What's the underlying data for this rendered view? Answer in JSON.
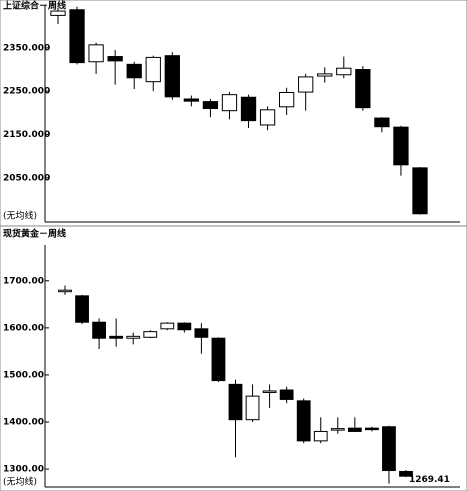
{
  "chart_data": [
    {
      "type": "candlestick",
      "title": "上证综合－周线",
      "note": "(无均线)",
      "ylim": [
        1948,
        2449
      ],
      "yticks": [
        {
          "value": 2350,
          "label": "2350.000"
        },
        {
          "value": 2250,
          "label": "2250.000"
        },
        {
          "value": 2150,
          "label": "2150.000"
        },
        {
          "value": 2050,
          "label": "2050.000"
        }
      ],
      "open": [
        2425,
        2438,
        2318,
        2330,
        2312,
        2272,
        2332,
        2232,
        2226,
        2205,
        2236,
        2172,
        2214,
        2248,
        2285,
        2288,
        2300,
        2188,
        2167,
        2073
      ],
      "high": [
        2440,
        2445,
        2362,
        2345,
        2318,
        2332,
        2340,
        2240,
        2232,
        2248,
        2242,
        2215,
        2258,
        2290,
        2305,
        2330,
        2308,
        2190,
        2170,
        2075
      ],
      "low": [
        2405,
        2312,
        2290,
        2265,
        2255,
        2250,
        2230,
        2215,
        2190,
        2185,
        2165,
        2160,
        2195,
        2205,
        2270,
        2280,
        2205,
        2155,
        2055,
        1965
      ],
      "close": [
        2435,
        2316,
        2357,
        2320,
        2281,
        2328,
        2237,
        2227,
        2210,
        2242,
        2182,
        2207,
        2247,
        2283,
        2290,
        2303,
        2212,
        2168,
        2080,
        1967
      ]
    },
    {
      "type": "candlestick",
      "title": "现货黄金－周线",
      "note": "(无均线)",
      "annotation": "1269.41",
      "ylim": [
        1262,
        1776
      ],
      "yticks": [
        {
          "value": 1700,
          "label": "1700.00"
        },
        {
          "value": 1600,
          "label": "1600.00"
        },
        {
          "value": 1500,
          "label": "1500.00"
        },
        {
          "value": 1400,
          "label": "1400.00"
        },
        {
          "value": 1300,
          "label": "1300.00"
        }
      ],
      "open": [
        1678,
        1668,
        1612,
        1582,
        1578,
        1580,
        1598,
        1610,
        1598,
        1578,
        1480,
        1405,
        1463,
        1468,
        1445,
        1360,
        1384,
        1387,
        1387,
        1390,
        1295
      ],
      "high": [
        1690,
        1670,
        1620,
        1620,
        1590,
        1595,
        1612,
        1612,
        1610,
        1580,
        1490,
        1480,
        1480,
        1475,
        1450,
        1410,
        1410,
        1410,
        1390,
        1392,
        1298
      ],
      "low": [
        1670,
        1608,
        1555,
        1560,
        1565,
        1578,
        1595,
        1590,
        1545,
        1485,
        1325,
        1400,
        1430,
        1440,
        1355,
        1355,
        1375,
        1380,
        1380,
        1269,
        1283
      ],
      "close": [
        1680,
        1612,
        1578,
        1578,
        1582,
        1592,
        1610,
        1596,
        1580,
        1488,
        1405,
        1455,
        1466,
        1448,
        1360,
        1380,
        1386,
        1380,
        1385,
        1297,
        1285
      ]
    }
  ]
}
